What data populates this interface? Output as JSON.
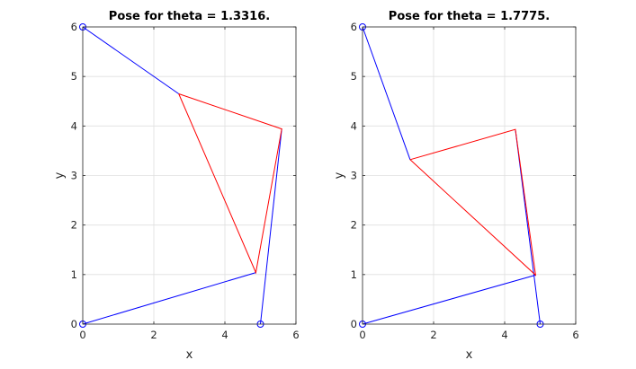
{
  "chart_data": [
    {
      "type": "line",
      "title": "Pose for theta = 1.3316.",
      "xlabel": "x",
      "ylabel": "y",
      "xlim": [
        0,
        6
      ],
      "ylim": [
        0,
        6
      ],
      "xticks": [
        "0",
        "2",
        "4",
        "6"
      ],
      "yticks": [
        "0",
        "1",
        "2",
        "3",
        "4",
        "5",
        "6"
      ],
      "grid": true,
      "series": [
        {
          "color": "#0000ff",
          "points": [
            [
              0,
              0
            ],
            [
              4.87,
              1.04
            ]
          ]
        },
        {
          "color": "#0000ff",
          "points": [
            [
              0,
              6
            ],
            [
              2.7,
              4.65
            ]
          ]
        },
        {
          "color": "#0000ff",
          "points": [
            [
              5,
              0
            ],
            [
              5.6,
              3.94
            ]
          ]
        },
        {
          "color": "#ff0000",
          "points": [
            [
              2.7,
              4.65
            ],
            [
              5.6,
              3.94
            ],
            [
              4.87,
              1.04
            ],
            [
              2.7,
              4.65
            ]
          ]
        }
      ],
      "markers": {
        "color": "#0000ff",
        "shape": "circle-open",
        "points": [
          [
            0,
            0
          ],
          [
            0,
            6
          ],
          [
            5,
            0
          ]
        ]
      }
    },
    {
      "type": "line",
      "title": "Pose for theta = 1.7775.",
      "xlabel": "x",
      "ylabel": "y",
      "xlim": [
        0,
        6
      ],
      "ylim": [
        0,
        6
      ],
      "xticks": [
        "0",
        "2",
        "4",
        "6"
      ],
      "yticks": [
        "0",
        "1",
        "2",
        "3",
        "4",
        "5",
        "6"
      ],
      "grid": true,
      "series": [
        {
          "color": "#0000ff",
          "points": [
            [
              0,
              0
            ],
            [
              4.87,
              0.99
            ]
          ]
        },
        {
          "color": "#0000ff",
          "points": [
            [
              0,
              6
            ],
            [
              1.34,
              3.32
            ]
          ]
        },
        {
          "color": "#0000ff",
          "points": [
            [
              5,
              0
            ],
            [
              4.3,
              3.93
            ]
          ]
        },
        {
          "color": "#ff0000",
          "points": [
            [
              1.34,
              3.32
            ],
            [
              4.3,
              3.93
            ],
            [
              4.87,
              0.99
            ],
            [
              1.34,
              3.32
            ]
          ]
        }
      ],
      "markers": {
        "color": "#0000ff",
        "shape": "circle-open",
        "points": [
          [
            0,
            0
          ],
          [
            0,
            6
          ],
          [
            5,
            0
          ]
        ]
      }
    }
  ]
}
